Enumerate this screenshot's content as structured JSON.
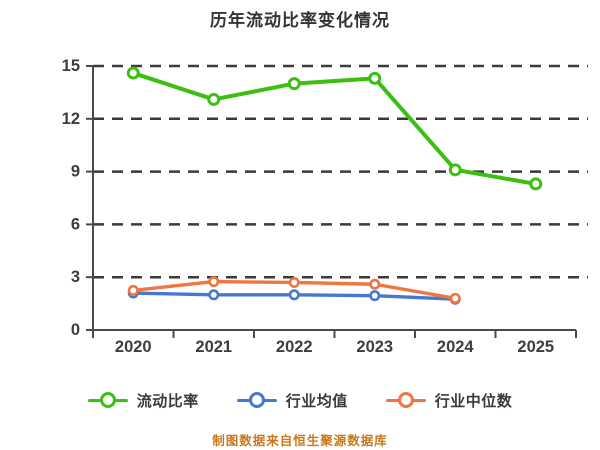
{
  "title": "历年流动比率变化情况",
  "caption": "制图数据来自恒生聚源数据库",
  "colors": {
    "background": "#ffffff",
    "title_text": "#333333",
    "axis_text": "#3d3d3d",
    "axis_line": "#4a4a4a",
    "gridline": "#3a3a3a",
    "marker_fill": "#ffffff",
    "caption_text": "#c8791e",
    "series_current_ratio": "#3cbe12",
    "series_industry_mean": "#4678d1",
    "series_industry_median": "#f0763f"
  },
  "legend": {
    "items": [
      {
        "label": "流动比率",
        "color": "#3cbe12"
      },
      {
        "label": "行业均值",
        "color": "#4678d1"
      },
      {
        "label": "行业中位数",
        "color": "#f0763f"
      }
    ]
  },
  "chart_data": {
    "type": "line",
    "title": "历年流动比率变化情况",
    "categories": [
      "2020",
      "2021",
      "2022",
      "2023",
      "2024",
      "2025"
    ],
    "series": [
      {
        "name": "流动比率",
        "color": "#3cbe12",
        "values": [
          14.6,
          13.1,
          14.0,
          14.3,
          9.1,
          8.3
        ]
      },
      {
        "name": "行业均值",
        "color": "#4678d1",
        "values": [
          2.1,
          2.0,
          2.0,
          1.95,
          1.75,
          null
        ]
      },
      {
        "name": "行业中位数",
        "color": "#f0763f",
        "values": [
          2.25,
          2.75,
          2.7,
          2.6,
          1.8,
          null
        ]
      }
    ],
    "ylim": [
      0,
      15
    ],
    "yticks": [
      0,
      3,
      6,
      9,
      12,
      15
    ],
    "grid": "horizontal-dashed",
    "legend_position": "bottom",
    "marker": "circle-white-fill",
    "annotation": "制图数据来自恒生聚源数据库"
  }
}
